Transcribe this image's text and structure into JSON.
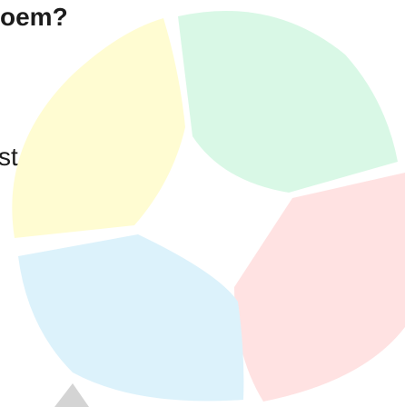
{
  "prompt": {
    "heading_fragment": "oem?",
    "body_fragment": "st"
  },
  "wheel": {
    "segments": [
      {
        "name": "wheel-segment-green",
        "color": "#d9f8e6"
      },
      {
        "name": "wheel-segment-red",
        "color": "#ffe2e2"
      },
      {
        "name": "wheel-segment-blue",
        "color": "#dcf2fb"
      },
      {
        "name": "wheel-segment-yellow",
        "color": "#fffcd2"
      }
    ],
    "pointer_color": "#d4d4d4"
  }
}
